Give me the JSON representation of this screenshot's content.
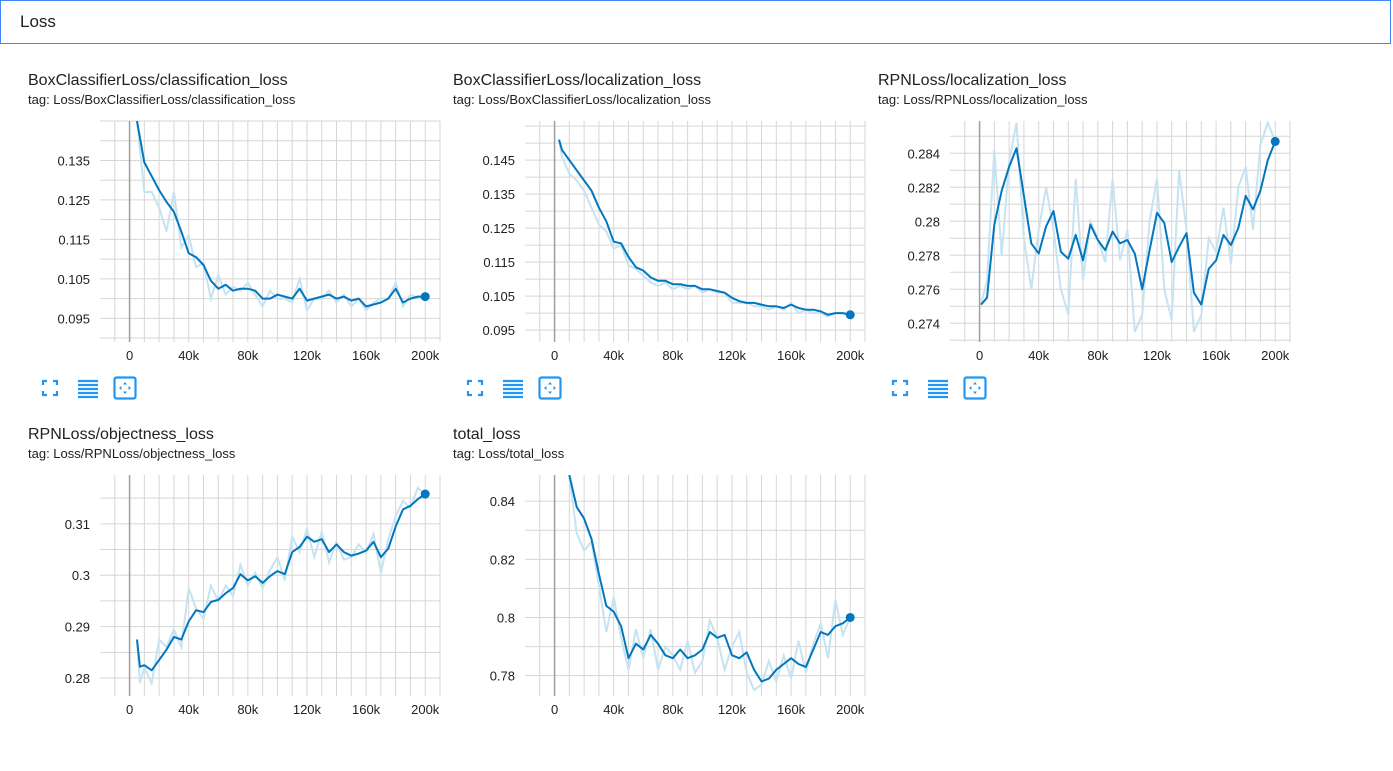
{
  "header": {
    "title": "Loss"
  },
  "colors": {
    "accent": "#4285f4",
    "line": "#0277bd",
    "raw": "#c6e3f2",
    "grid": "#d6d6d6",
    "zero": "#9e9e9e",
    "tool": "#2196f3"
  },
  "icons": [
    "fullscreen-icon",
    "toggle-log-scale-icon",
    "fit-domain-icon"
  ],
  "charts": [
    {
      "title": "BoxClassifierLoss/classification_loss",
      "tag": "tag: Loss/BoxClassifierLoss/classification_loss",
      "chart_data": {
        "type": "line",
        "xlim": [
          -20000,
          210000
        ],
        "ylim": [
          0.089,
          0.145
        ],
        "x_ticks": [
          0,
          40000,
          80000,
          120000,
          160000,
          200000
        ],
        "x_tick_labels": [
          "0",
          "40k",
          "80k",
          "120k",
          "160k",
          "200k"
        ],
        "y_ticks": [
          0.095,
          0.105,
          0.115,
          0.125,
          0.135
        ],
        "y_tick_labels": [
          "0.095",
          "0.105",
          "0.115",
          "0.125",
          "0.135"
        ],
        "series": [
          {
            "x": [
              5000,
              10000,
              15000,
              20000,
              25000,
              30000,
              35000,
              40000,
              45000,
              50000,
              55000,
              60000,
              65000,
              70000,
              75000,
              80000,
              85000,
              90000,
              95000,
              100000,
              105000,
              110000,
              115000,
              120000,
              125000,
              130000,
              135000,
              140000,
              145000,
              150000,
              155000,
              160000,
              165000,
              170000,
              175000,
              180000,
              185000,
              190000,
              195000,
              200000
            ],
            "y": [
              0.145,
              0.1345,
              0.131,
              0.1275,
              0.1245,
              0.122,
              0.117,
              0.1115,
              0.1105,
              0.1085,
              0.1045,
              0.1025,
              0.1035,
              0.102,
              0.1025,
              0.1025,
              0.102,
              0.1,
              0.1,
              0.101,
              0.1005,
              0.1,
              0.1025,
              0.0995,
              0.1,
              0.1005,
              0.101,
              0.1,
              0.1005,
              0.0995,
              0.1,
              0.098,
              0.0985,
              0.099,
              0.1,
              0.1025,
              0.099,
              0.1,
              0.1005,
              0.1005
            ],
            "raw_y": [
              0.145,
              0.127,
              0.127,
              0.123,
              0.117,
              0.127,
              0.113,
              0.116,
              0.108,
              0.109,
              0.1,
              0.106,
              0.101,
              0.103,
              0.102,
              0.104,
              0.101,
              0.098,
              0.102,
              0.1,
              0.1,
              0.099,
              0.105,
              0.097,
              0.1,
              0.1,
              0.102,
              0.099,
              0.101,
              0.098,
              0.1,
              0.097,
              0.099,
              0.1,
              0.1,
              0.104,
              0.098,
              0.101,
              0.1,
              0.1005
            ]
          }
        ]
      }
    },
    {
      "title": "BoxClassifierLoss/localization_loss",
      "tag": "tag: Loss/BoxClassifierLoss/localization_loss",
      "chart_data": {
        "type": "line",
        "xlim": [
          -20000,
          210000
        ],
        "ylim": [
          0.0915,
          0.1565
        ],
        "x_ticks": [
          0,
          40000,
          80000,
          120000,
          160000,
          200000
        ],
        "x_tick_labels": [
          "0",
          "40k",
          "80k",
          "120k",
          "160k",
          "200k"
        ],
        "y_ticks": [
          0.095,
          0.105,
          0.115,
          0.125,
          0.135,
          0.145
        ],
        "y_tick_labels": [
          "0.095",
          "0.105",
          "0.115",
          "0.125",
          "0.135",
          "0.145"
        ],
        "series": [
          {
            "x": [
              3000,
              5000,
              10000,
              15000,
              20000,
              25000,
              30000,
              35000,
              40000,
              45000,
              50000,
              55000,
              60000,
              65000,
              70000,
              75000,
              80000,
              85000,
              90000,
              95000,
              100000,
              105000,
              110000,
              115000,
              120000,
              125000,
              130000,
              135000,
              140000,
              145000,
              150000,
              155000,
              160000,
              165000,
              170000,
              175000,
              180000,
              185000,
              190000,
              195000,
              200000
            ],
            "y": [
              0.151,
              0.148,
              0.145,
              0.142,
              0.139,
              0.136,
              0.131,
              0.127,
              0.121,
              0.1205,
              0.1165,
              0.1135,
              0.1125,
              0.1105,
              0.1095,
              0.1095,
              0.1085,
              0.1085,
              0.108,
              0.108,
              0.107,
              0.107,
              0.1065,
              0.106,
              0.1045,
              0.1035,
              0.103,
              0.103,
              0.1025,
              0.102,
              0.102,
              0.1015,
              0.1025,
              0.1015,
              0.101,
              0.101,
              0.1005,
              0.0995,
              0.1,
              0.1,
              0.0995
            ],
            "raw_y": [
              0.151,
              0.146,
              0.141,
              0.139,
              0.136,
              0.131,
              0.126,
              0.124,
              0.119,
              0.12,
              0.114,
              0.113,
              0.111,
              0.109,
              0.108,
              0.109,
              0.107,
              0.108,
              0.107,
              0.108,
              0.106,
              0.107,
              0.106,
              0.106,
              0.103,
              0.103,
              0.103,
              0.102,
              0.102,
              0.101,
              0.102,
              0.101,
              0.103,
              0.1,
              0.101,
              0.1,
              0.1,
              0.099,
              0.1,
              0.1,
              0.0995
            ]
          }
        ]
      }
    },
    {
      "title": "RPNLoss/localization_loss",
      "tag": "tag: Loss/RPNLoss/localization_loss",
      "chart_data": {
        "type": "line",
        "xlim": [
          -20000,
          210000
        ],
        "ylim": [
          0.2729,
          0.2859
        ],
        "x_ticks": [
          0,
          40000,
          80000,
          120000,
          160000,
          200000
        ],
        "x_tick_labels": [
          "0",
          "40k",
          "80k",
          "120k",
          "160k",
          "200k"
        ],
        "y_ticks": [
          0.274,
          0.276,
          0.278,
          0.28,
          0.282,
          0.284
        ],
        "y_tick_labels": [
          "0.274",
          "0.276",
          "0.278",
          "0.28",
          "0.282",
          "0.284"
        ],
        "series": [
          {
            "x": [
              1000,
              5000,
              10000,
              15000,
              20000,
              25000,
              30000,
              35000,
              40000,
              45000,
              50000,
              55000,
              60000,
              65000,
              70000,
              75000,
              80000,
              85000,
              90000,
              95000,
              100000,
              105000,
              110000,
              115000,
              120000,
              125000,
              130000,
              135000,
              140000,
              145000,
              150000,
              155000,
              160000,
              165000,
              170000,
              175000,
              180000,
              185000,
              190000,
              195000,
              200000
            ],
            "y": [
              0.2751,
              0.2755,
              0.2798,
              0.2818,
              0.2832,
              0.2843,
              0.2815,
              0.2787,
              0.2781,
              0.2797,
              0.2806,
              0.2782,
              0.2778,
              0.2792,
              0.2777,
              0.2798,
              0.2789,
              0.2783,
              0.2794,
              0.2787,
              0.2789,
              0.2781,
              0.276,
              0.2783,
              0.2805,
              0.2799,
              0.2776,
              0.2785,
              0.2793,
              0.2758,
              0.2751,
              0.2772,
              0.2777,
              0.2792,
              0.2786,
              0.2796,
              0.2815,
              0.2807,
              0.2818,
              0.2836,
              0.2847
            ],
            "raw_y": [
              0.2751,
              0.2765,
              0.2842,
              0.278,
              0.2835,
              0.2858,
              0.279,
              0.276,
              0.2795,
              0.282,
              0.2795,
              0.276,
              0.2745,
              0.2825,
              0.2765,
              0.28,
              0.279,
              0.2776,
              0.2825,
              0.2777,
              0.2795,
              0.2735,
              0.2745,
              0.28,
              0.2825,
              0.276,
              0.2742,
              0.283,
              0.2795,
              0.2735,
              0.2745,
              0.279,
              0.2782,
              0.2808,
              0.2775,
              0.282,
              0.2832,
              0.2795,
              0.2845,
              0.2858,
              0.2847
            ]
          }
        ]
      }
    },
    {
      "title": "RPNLoss/objectness_loss",
      "tag": "tag: Loss/RPNLoss/objectness_loss",
      "chart_data": {
        "type": "line",
        "xlim": [
          -20000,
          210000
        ],
        "ylim": [
          0.2765,
          0.3195
        ],
        "x_ticks": [
          0,
          40000,
          80000,
          120000,
          160000,
          200000
        ],
        "x_tick_labels": [
          "0",
          "40k",
          "80k",
          "120k",
          "160k",
          "200k"
        ],
        "y_ticks": [
          0.28,
          0.29,
          0.3,
          0.31
        ],
        "y_tick_labels": [
          "0.28",
          "0.29",
          "0.3",
          "0.31"
        ],
        "series": [
          {
            "x": [
              5000,
              7000,
              10000,
              15000,
              20000,
              25000,
              30000,
              35000,
              40000,
              45000,
              50000,
              55000,
              60000,
              65000,
              70000,
              75000,
              80000,
              85000,
              90000,
              95000,
              100000,
              105000,
              110000,
              115000,
              120000,
              125000,
              130000,
              135000,
              140000,
              145000,
              150000,
              155000,
              160000,
              165000,
              170000,
              175000,
              180000,
              185000,
              190000,
              195000,
              200000
            ],
            "y": [
              0.2875,
              0.2822,
              0.2825,
              0.2815,
              0.2835,
              0.2855,
              0.288,
              0.2875,
              0.291,
              0.2932,
              0.2928,
              0.2948,
              0.2952,
              0.2965,
              0.2975,
              0.3002,
              0.299,
              0.2998,
              0.2985,
              0.2998,
              0.3008,
              0.3002,
              0.3045,
              0.3055,
              0.3075,
              0.3065,
              0.307,
              0.3045,
              0.306,
              0.3045,
              0.3038,
              0.3042,
              0.3048,
              0.3065,
              0.3035,
              0.3052,
              0.3095,
              0.3128,
              0.3135,
              0.3148,
              0.3158
            ],
            "raw_y": [
              0.2875,
              0.279,
              0.282,
              0.279,
              0.2875,
              0.286,
              0.2895,
              0.286,
              0.2975,
              0.2935,
              0.2915,
              0.298,
              0.295,
              0.298,
              0.296,
              0.302,
              0.298,
              0.3005,
              0.2975,
              0.301,
              0.3035,
              0.299,
              0.3075,
              0.3045,
              0.309,
              0.3035,
              0.3085,
              0.3025,
              0.3065,
              0.303,
              0.3035,
              0.306,
              0.3045,
              0.308,
              0.3005,
              0.307,
              0.3115,
              0.3145,
              0.313,
              0.317,
              0.3158
            ]
          }
        ]
      }
    },
    {
      "title": "total_loss",
      "tag": "tag: Loss/total_loss",
      "chart_data": {
        "type": "line",
        "xlim": [
          -20000,
          210000
        ],
        "ylim": [
          0.773,
          0.849
        ],
        "x_ticks": [
          0,
          40000,
          80000,
          120000,
          160000,
          200000
        ],
        "x_tick_labels": [
          "0",
          "40k",
          "80k",
          "120k",
          "160k",
          "200k"
        ],
        "y_ticks": [
          0.78,
          0.8,
          0.82,
          0.84
        ],
        "y_tick_labels": [
          "0.78",
          "0.8",
          "0.82",
          "0.84"
        ],
        "series": [
          {
            "x": [
              10000,
              15000,
              20000,
              25000,
              30000,
              35000,
              40000,
              45000,
              50000,
              55000,
              60000,
              65000,
              70000,
              75000,
              80000,
              85000,
              90000,
              95000,
              100000,
              105000,
              110000,
              115000,
              120000,
              125000,
              130000,
              135000,
              140000,
              145000,
              150000,
              155000,
              160000,
              165000,
              170000,
              175000,
              180000,
              185000,
              190000,
              195000,
              200000
            ],
            "y": [
              0.849,
              0.838,
              0.834,
              0.827,
              0.815,
              0.804,
              0.802,
              0.797,
              0.786,
              0.791,
              0.789,
              0.794,
              0.791,
              0.787,
              0.786,
              0.789,
              0.786,
              0.787,
              0.789,
              0.795,
              0.793,
              0.794,
              0.787,
              0.786,
              0.788,
              0.782,
              0.778,
              0.779,
              0.782,
              0.784,
              0.786,
              0.784,
              0.783,
              0.789,
              0.795,
              0.794,
              0.797,
              0.798,
              0.8
            ],
            "raw_y": [
              0.849,
              0.829,
              0.823,
              0.826,
              0.811,
              0.795,
              0.807,
              0.793,
              0.782,
              0.796,
              0.786,
              0.796,
              0.782,
              0.79,
              0.787,
              0.782,
              0.792,
              0.781,
              0.785,
              0.799,
              0.793,
              0.782,
              0.79,
              0.795,
              0.781,
              0.775,
              0.777,
              0.785,
              0.778,
              0.787,
              0.779,
              0.792,
              0.781,
              0.791,
              0.798,
              0.786,
              0.806,
              0.794,
              0.8
            ]
          }
        ]
      }
    }
  ]
}
